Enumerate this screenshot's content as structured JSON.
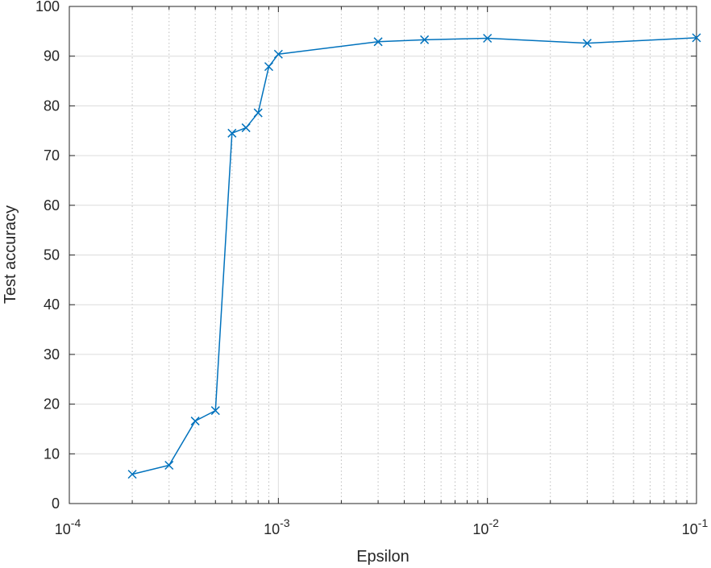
{
  "chart_data": {
    "type": "line",
    "xscale": "log",
    "xlim": [
      0.0001,
      0.1
    ],
    "ylim": [
      0,
      100
    ],
    "xlabel": "Epsilon",
    "ylabel": "Test accuracy",
    "x_ticks": [
      {
        "value": 0.0001,
        "base": "10",
        "exp": "-4"
      },
      {
        "value": 0.001,
        "base": "10",
        "exp": "-3"
      },
      {
        "value": 0.01,
        "base": "10",
        "exp": "-2"
      },
      {
        "value": 0.1,
        "base": "10",
        "exp": "-1"
      }
    ],
    "y_ticks": [
      "0",
      "10",
      "20",
      "30",
      "40",
      "50",
      "60",
      "70",
      "80",
      "90",
      "100"
    ],
    "grid": true,
    "line_color": "#0072BD",
    "marker": "x",
    "series": [
      {
        "x": [
          0.0002,
          0.0003,
          0.0004,
          0.0005,
          0.0006,
          0.0007,
          0.0008,
          0.0009,
          0.001,
          0.003,
          0.005,
          0.01,
          0.03,
          0.1
        ],
        "y": [
          5.9,
          7.7,
          16.6,
          18.7,
          74.5,
          75.6,
          78.6,
          87.9,
          90.4,
          92.9,
          93.3,
          93.6,
          92.6,
          93.7
        ]
      }
    ]
  }
}
